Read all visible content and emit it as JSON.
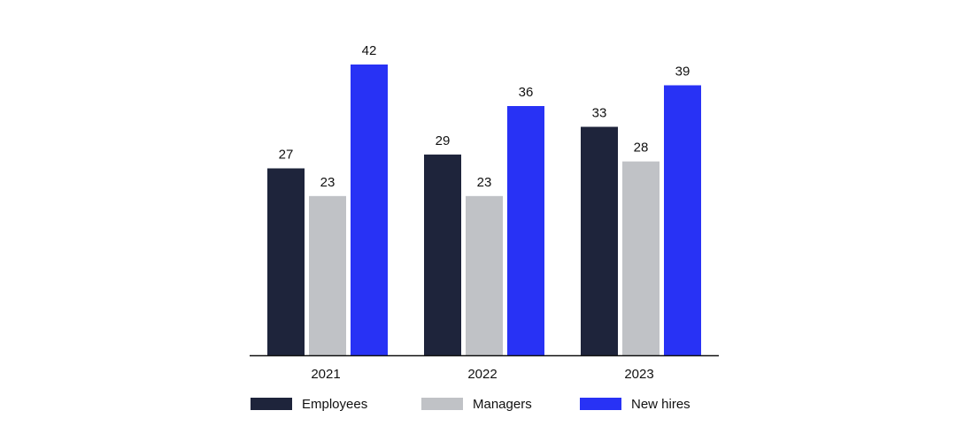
{
  "chart_data": {
    "type": "bar",
    "categories": [
      "2021",
      "2022",
      "2023"
    ],
    "series": [
      {
        "name": "Employees",
        "color": "#1e243b",
        "values": [
          27,
          29,
          33
        ]
      },
      {
        "name": "Managers",
        "color": "#c0c2c6",
        "values": [
          23,
          23,
          28
        ]
      },
      {
        "name": "New hires",
        "color": "#2832f5",
        "values": [
          42,
          36,
          39
        ]
      }
    ],
    "ylim": [
      0,
      42
    ]
  }
}
